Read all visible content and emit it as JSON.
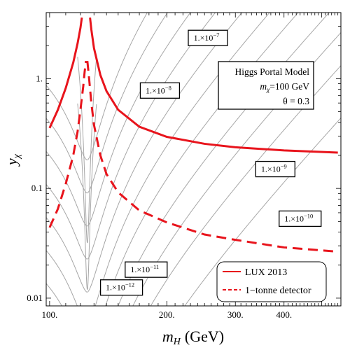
{
  "chart_data": {
    "type": "line",
    "title": "",
    "xlabel_main": "m",
    "xlabel_sub": "H",
    "xlabel_unit": "(GeV)",
    "ylabel_main": "y",
    "ylabel_sub": "χ",
    "x_scale": "log",
    "y_scale": "log",
    "xlim": [
      98,
      560
    ],
    "ylim": [
      0.0085,
      4.0
    ],
    "x_ticks": [
      {
        "value": 100,
        "label": "100."
      },
      {
        "value": 200,
        "label": "200."
      },
      {
        "value": 300,
        "label": "300."
      },
      {
        "value": 400,
        "label": "400."
      }
    ],
    "y_ticks": [
      {
        "value": 0.01,
        "label": "0.01"
      },
      {
        "value": 0.1,
        "label": "0.1"
      },
      {
        "value": 1,
        "label": "1."
      }
    ],
    "grid": false,
    "resonance_mass": 125,
    "contour_levels": [
      {
        "mantissa": "1.×10",
        "exponent": "−7",
        "label_x": 255,
        "label_y": 2.35
      },
      {
        "mantissa": "1.×10",
        "exponent": "−8",
        "label_x": 192,
        "label_y": 0.78
      },
      {
        "mantissa": "1.×10",
        "exponent": "−9",
        "label_x": 380,
        "label_y": 0.15
      },
      {
        "mantissa": "1.×10",
        "exponent": "−10",
        "label_x": 440,
        "label_y": 0.053
      },
      {
        "mantissa": "1.×10",
        "exponent": "−11",
        "label_x": 177,
        "label_y": 0.0182
      },
      {
        "mantissa": "1.×10",
        "exponent": "−12",
        "label_x": 153,
        "label_y": 0.0125
      }
    ],
    "series": [
      {
        "name": "LUX 2013",
        "style": "solid",
        "color": "#e8141c",
        "left_branch": [
          [
            100,
            0.355
          ],
          [
            105,
            0.52
          ],
          [
            110,
            0.82
          ],
          [
            115,
            1.4
          ],
          [
            118,
            2.1
          ],
          [
            120,
            2.9
          ],
          [
            121,
            3.6
          ]
        ],
        "right_branch": [
          [
            127,
            3.6
          ],
          [
            128,
            2.8
          ],
          [
            130,
            1.9
          ],
          [
            135,
            1.08
          ],
          [
            140,
            0.77
          ],
          [
            150,
            0.52
          ],
          [
            170,
            0.365
          ],
          [
            200,
            0.295
          ],
          [
            250,
            0.255
          ],
          [
            300,
            0.237
          ],
          [
            400,
            0.222
          ],
          [
            550,
            0.212
          ]
        ]
      },
      {
        "name": "1−tonne detector",
        "style": "dashed",
        "color": "#e8141c",
        "left_branch": [
          [
            100,
            0.044
          ],
          [
            105,
            0.065
          ],
          [
            110,
            0.11
          ],
          [
            115,
            0.2
          ],
          [
            118,
            0.33
          ],
          [
            120,
            0.52
          ],
          [
            122,
            0.85
          ],
          [
            123,
            1.15
          ],
          [
            124,
            1.45
          ]
        ],
        "right_branch": [
          [
            125,
            1.45
          ],
          [
            126,
            1.1
          ],
          [
            128,
            0.6
          ],
          [
            130,
            0.38
          ],
          [
            135,
            0.2
          ],
          [
            140,
            0.135
          ],
          [
            150,
            0.092
          ],
          [
            170,
            0.063
          ],
          [
            200,
            0.049
          ],
          [
            250,
            0.038
          ],
          [
            300,
            0.034
          ],
          [
            400,
            0.029
          ],
          [
            550,
            0.0265
          ]
        ]
      }
    ],
    "annotation": {
      "line1": "Higgs Portal Model",
      "line2_main": "m",
      "line2_sub": "χ",
      "line2_rest": "=100 GeV",
      "line3": "θ = 0.3"
    },
    "legend": {
      "placement": "bottom-right",
      "entries": [
        "LUX 2013",
        "1−tonne detector"
      ]
    },
    "colors": {
      "exclusion": "#e8141c",
      "contour": "#a6a6a6",
      "frame": "#000000"
    }
  }
}
